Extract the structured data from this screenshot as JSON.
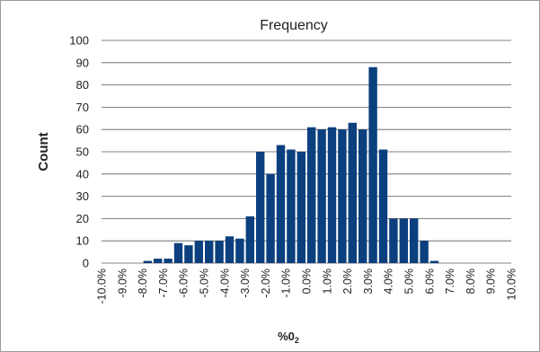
{
  "chart_data": {
    "type": "bar",
    "title": "Frequency",
    "ylabel": "Count",
    "xlabel_main": "%0",
    "xlabel_sub": "2",
    "ylim": [
      0,
      100
    ],
    "yticks": [
      0,
      10,
      20,
      30,
      40,
      50,
      60,
      70,
      80,
      90,
      100
    ],
    "xlim": [
      -10.0,
      10.0
    ],
    "xticks": [
      "-10.0%",
      "-9.0%",
      "-8.0%",
      "-7.0%",
      "-6.0%",
      "-5.0%",
      "-4.0%",
      "-3.0%",
      "-2.0%",
      "-1.0%",
      "0.0%",
      "1.0%",
      "2.0%",
      "3.0%",
      "4.0%",
      "5.0%",
      "6.0%",
      "7.0%",
      "8.0%",
      "9.0%",
      "10.0%"
    ],
    "grid": true,
    "bar_color": "#0b3f7e",
    "bin_width": 0.5,
    "x": [
      -8.0,
      -7.5,
      -7.0,
      -6.5,
      -6.0,
      -5.5,
      -5.0,
      -4.5,
      -4.0,
      -3.5,
      -3.0,
      -2.5,
      -2.0,
      -1.5,
      -1.0,
      -0.5,
      0.0,
      0.5,
      1.0,
      1.5,
      2.0,
      2.5,
      3.0,
      3.5,
      4.0,
      4.5,
      5.0,
      5.5,
      6.0
    ],
    "values": [
      1,
      2,
      2,
      9,
      8,
      10,
      10,
      10,
      12,
      11,
      21,
      50,
      40,
      53,
      51,
      50,
      61,
      60,
      61,
      60,
      63,
      60,
      88,
      51,
      20,
      20,
      20,
      10,
      1
    ]
  }
}
